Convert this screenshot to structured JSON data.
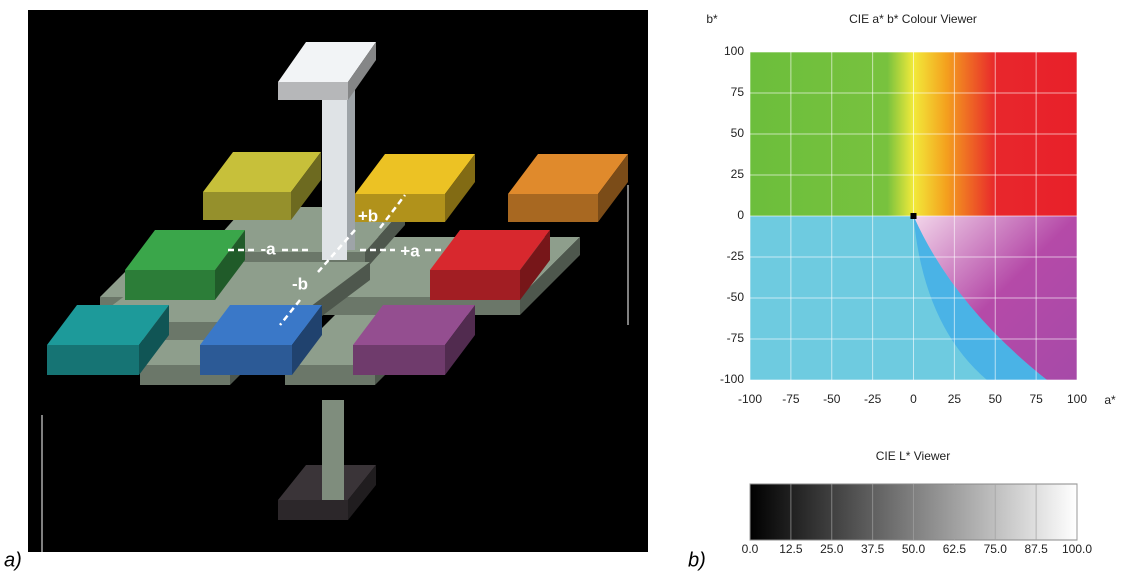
{
  "panel_labels": [
    "a)",
    "b)"
  ],
  "diagram": {
    "labels": [
      "+b",
      "-a",
      "+a",
      "-b"
    ]
  },
  "chart_data": [
    {
      "type": "colormap",
      "title": "CIE a* b* Colour Viewer",
      "x_label": "a*",
      "y_label": "b*",
      "xlim": [
        -100,
        100
      ],
      "ylim": [
        -100,
        100
      ],
      "xticks": [
        -100,
        -75,
        -50,
        -25,
        0,
        25,
        50,
        75,
        100
      ],
      "yticks": [
        -100,
        -75,
        -50,
        -25,
        0,
        25,
        50,
        75,
        100
      ],
      "grid": true,
      "x": [
        0
      ],
      "values": [
        0
      ]
    },
    {
      "type": "gradient",
      "title": "CIE L* Viewer",
      "xlim": [
        0,
        100
      ],
      "xticks": [
        {
          "value": 0,
          "label": "0.0"
        },
        12.5,
        {
          "value": 25,
          "label": "25.0"
        },
        37.5,
        {
          "value": 50,
          "label": "50.0"
        },
        62.5,
        {
          "value": 75,
          "label": "75.0"
        },
        87.5,
        {
          "value": 100,
          "label": "100.0"
        }
      ],
      "grid": true
    }
  ]
}
